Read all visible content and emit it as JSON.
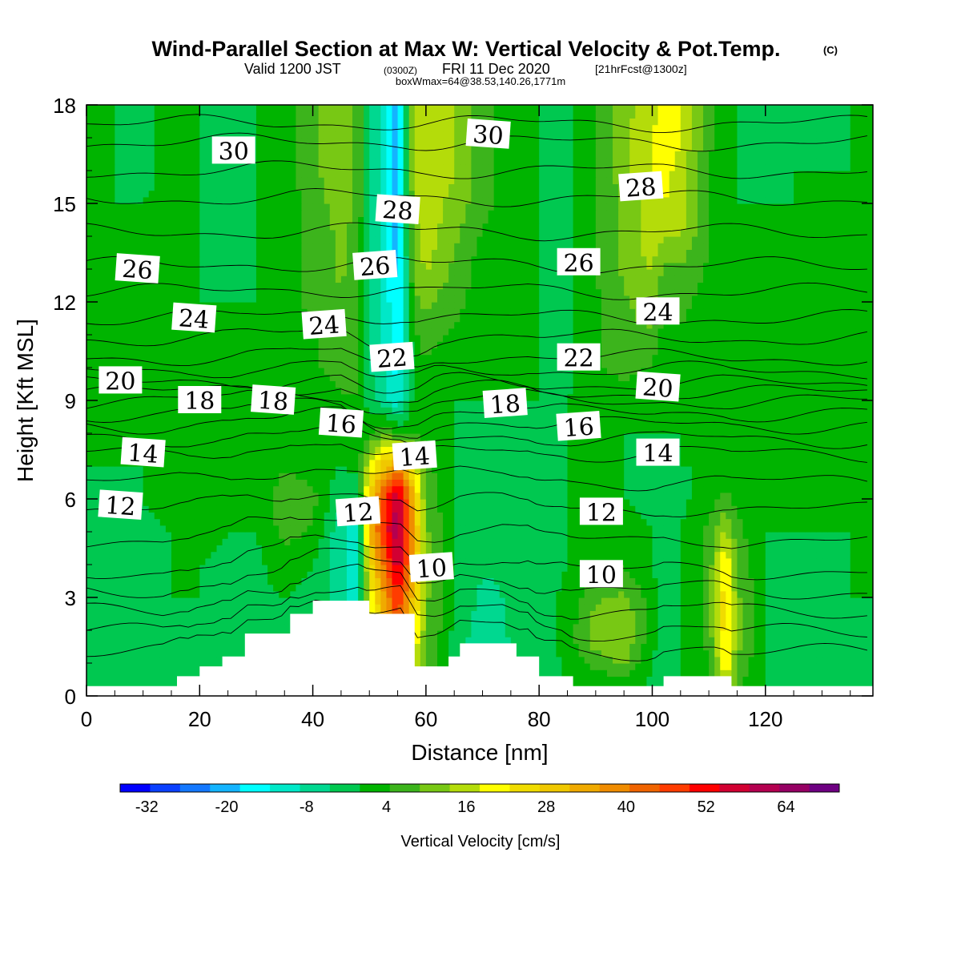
{
  "header": {
    "title": "Wind-Parallel Section at Max W: Vertical Velocity & Pot.Temp.",
    "copyright": "(C)",
    "valid_prefix": "Valid 1200 JST",
    "valid_utc": "(0300Z)",
    "valid_date": "FRI 11 Dec 2020",
    "forecast": "[21hrFcst@1300z]",
    "boxinfo": "boxWmax=64@38.53,140.26,1771m"
  },
  "chart_data": {
    "type": "heatmap",
    "xlabel": "Distance [nm]",
    "ylabel": "Height [Kft MSL]",
    "xlim": [
      0,
      139
    ],
    "ylim": [
      0,
      18
    ],
    "xticks": [
      0,
      20,
      40,
      60,
      80,
      100,
      120
    ],
    "yticks": [
      0,
      3,
      6,
      9,
      12,
      15,
      18
    ],
    "colorbar": {
      "label": "Vertical Velocity [cm/s]",
      "ticks": [
        -32,
        -20,
        -8,
        4,
        16,
        28,
        40,
        52,
        64
      ],
      "colors": [
        "#0000ff",
        "#0a40ff",
        "#1478ff",
        "#14b4ff",
        "#00ffff",
        "#00e8c8",
        "#00d890",
        "#00c850",
        "#00b400",
        "#3cb41c",
        "#78c814",
        "#b4dc0a",
        "#ffff00",
        "#f0dc00",
        "#f0c800",
        "#f0aa00",
        "#f08c00",
        "#f06400",
        "#ff3c00",
        "#ff0000",
        "#d20032",
        "#b40050",
        "#960064",
        "#6e0082"
      ]
    },
    "velocity_field_cm_s": {
      "x": [
        0,
        5,
        10,
        15,
        20,
        25,
        30,
        35,
        40,
        45,
        48,
        50,
        53,
        55,
        58,
        60,
        65,
        70,
        75,
        80,
        85,
        90,
        95,
        100,
        102,
        105,
        110,
        113,
        115,
        120,
        125,
        130,
        135,
        139
      ],
      "y": [
        0,
        0.5,
        1,
        1.5,
        2,
        3,
        4,
        5,
        6,
        7,
        8,
        9,
        10,
        11,
        12,
        13,
        14,
        15,
        16,
        17,
        18
      ],
      "values": [
        [
          -3,
          -3,
          -2,
          -1,
          0,
          -2,
          -1,
          0,
          -2,
          -4,
          -6,
          10,
          20,
          30,
          15,
          6,
          -2,
          -6,
          -4,
          -3,
          0,
          2,
          4,
          -1,
          -2,
          0,
          2,
          20,
          6,
          0,
          -1,
          -1,
          0,
          -1
        ],
        [
          -3,
          -3,
          -2,
          -1,
          0,
          -2,
          -1,
          0,
          -2,
          -4,
          -6,
          10,
          20,
          30,
          15,
          6,
          -2,
          -6,
          -4,
          -3,
          0,
          2,
          4,
          -1,
          -2,
          0,
          2,
          20,
          6,
          0,
          -1,
          -1,
          0,
          -1
        ],
        [
          -3,
          -4,
          -3,
          -1,
          0,
          -2,
          -1,
          0,
          -2,
          -5,
          -8,
          10,
          24,
          35,
          18,
          8,
          -2,
          -7,
          -4,
          -3,
          1,
          6,
          10,
          0,
          -2,
          0,
          4,
          22,
          8,
          0,
          -1,
          -1,
          0,
          -1
        ],
        [
          -4,
          -4,
          -3,
          -1,
          0,
          -2,
          -1,
          0,
          -2,
          -6,
          -10,
          12,
          28,
          40,
          20,
          9,
          -2,
          -8,
          -5,
          -3,
          2,
          10,
          12,
          1,
          -2,
          0,
          5,
          24,
          10,
          0,
          -1,
          -1,
          0,
          -1
        ],
        [
          -3,
          -4,
          -3,
          -1,
          0,
          -2,
          -1,
          0,
          -2,
          -6,
          -10,
          14,
          32,
          44,
          24,
          10,
          -1,
          -7,
          -4,
          -3,
          2,
          12,
          14,
          2,
          -2,
          0,
          6,
          26,
          10,
          0,
          -1,
          -1,
          0,
          -1
        ],
        [
          -2,
          -3,
          -2,
          0,
          0,
          -1,
          -1,
          0,
          -2,
          -7,
          -12,
          18,
          38,
          50,
          28,
          10,
          0,
          -6,
          -4,
          -2,
          1,
          8,
          10,
          2,
          -2,
          0,
          6,
          26,
          10,
          0,
          -1,
          -1,
          0,
          0
        ],
        [
          -2,
          -2,
          -1,
          0,
          0,
          -1,
          -1,
          2,
          0,
          -8,
          -14,
          24,
          44,
          58,
          32,
          10,
          0,
          -4,
          -3,
          -2,
          0,
          4,
          4,
          0,
          -2,
          0,
          6,
          24,
          8,
          0,
          -1,
          -1,
          0,
          0
        ],
        [
          -1,
          -2,
          -1,
          0,
          1,
          0,
          0,
          6,
          4,
          -8,
          -12,
          30,
          52,
          62,
          34,
          10,
          0,
          -3,
          -2,
          -2,
          0,
          2,
          2,
          0,
          -2,
          0,
          6,
          14,
          6,
          0,
          0,
          0,
          0,
          0
        ],
        [
          0,
          -1,
          0,
          1,
          1,
          0,
          0,
          8,
          6,
          -4,
          -4,
          28,
          50,
          60,
          30,
          8,
          0,
          -2,
          -2,
          -2,
          0,
          1,
          0,
          -1,
          -3,
          -1,
          2,
          6,
          3,
          0,
          0,
          0,
          0,
          0
        ],
        [
          0,
          0,
          0,
          1,
          1,
          0,
          0,
          4,
          2,
          0,
          2,
          18,
          32,
          40,
          20,
          6,
          0,
          -2,
          -2,
          -2,
          0,
          1,
          0,
          -1,
          -2,
          0,
          0,
          2,
          1,
          0,
          0,
          0,
          0,
          0
        ],
        [
          0,
          0,
          0,
          1,
          0,
          0,
          0,
          2,
          0,
          0,
          0,
          4,
          8,
          4,
          4,
          2,
          0,
          -1,
          0,
          -1,
          0,
          1,
          0,
          0,
          0,
          0,
          0,
          0,
          0,
          0,
          0,
          0,
          0,
          0
        ],
        [
          0,
          0,
          0,
          1,
          0,
          0,
          0,
          2,
          2,
          4,
          4,
          -2,
          -8,
          -12,
          2,
          2,
          0,
          0,
          0,
          0,
          0,
          2,
          2,
          0,
          0,
          0,
          0,
          0,
          0,
          0,
          0,
          0,
          0,
          0
        ],
        [
          0,
          0,
          0,
          1,
          0,
          0,
          0,
          2,
          4,
          6,
          6,
          -4,
          -10,
          -16,
          2,
          4,
          2,
          0,
          0,
          0,
          -1,
          4,
          6,
          4,
          0,
          2,
          2,
          0,
          0,
          0,
          0,
          0,
          0,
          0
        ],
        [
          0,
          0,
          0,
          1,
          0,
          0,
          0,
          2,
          4,
          8,
          6,
          -4,
          -12,
          -18,
          4,
          6,
          4,
          0,
          0,
          0,
          -1,
          4,
          8,
          8,
          2,
          4,
          2,
          0,
          0,
          0,
          0,
          0,
          0,
          0
        ],
        [
          0,
          0,
          0,
          1,
          0,
          0,
          0,
          2,
          6,
          8,
          6,
          -4,
          -12,
          -18,
          8,
          10,
          6,
          2,
          0,
          0,
          -1,
          4,
          8,
          12,
          6,
          6,
          2,
          0,
          0,
          0,
          0,
          0,
          0,
          0
        ],
        [
          0,
          0,
          0,
          1,
          0,
          -1,
          0,
          2,
          6,
          10,
          6,
          -4,
          -14,
          -20,
          10,
          14,
          8,
          2,
          0,
          0,
          -1,
          4,
          10,
          14,
          8,
          8,
          4,
          0,
          0,
          0,
          0,
          0,
          0,
          0
        ],
        [
          0,
          0,
          0,
          1,
          0,
          -1,
          0,
          2,
          6,
          10,
          6,
          -4,
          -14,
          -20,
          12,
          16,
          10,
          4,
          0,
          0,
          -1,
          4,
          10,
          16,
          14,
          14,
          4,
          0,
          0,
          0,
          0,
          0,
          0,
          0
        ],
        [
          0,
          0,
          0,
          1,
          0,
          -2,
          0,
          2,
          6,
          12,
          8,
          -4,
          -14,
          -20,
          14,
          16,
          12,
          6,
          2,
          0,
          -1,
          4,
          10,
          16,
          18,
          16,
          4,
          0,
          0,
          0,
          0,
          0,
          0,
          0
        ],
        [
          0,
          0,
          -1,
          1,
          0,
          -2,
          0,
          2,
          8,
          12,
          8,
          -4,
          -12,
          -20,
          16,
          18,
          14,
          6,
          2,
          0,
          -1,
          4,
          12,
          18,
          20,
          16,
          4,
          0,
          0,
          -1,
          0,
          0,
          0,
          0
        ],
        [
          0,
          0,
          -1,
          1,
          0,
          -2,
          0,
          2,
          8,
          12,
          8,
          -4,
          -12,
          -22,
          16,
          18,
          14,
          6,
          2,
          0,
          -1,
          4,
          12,
          18,
          22,
          18,
          6,
          0,
          0,
          -2,
          0,
          -2,
          0,
          0
        ],
        [
          0,
          0,
          -1,
          1,
          0,
          -2,
          0,
          2,
          8,
          12,
          8,
          -4,
          -12,
          -24,
          16,
          18,
          14,
          6,
          2,
          0,
          -1,
          4,
          12,
          16,
          20,
          18,
          6,
          0,
          0,
          -2,
          0,
          -2,
          0,
          0
        ]
      ]
    },
    "terrain_kft": {
      "x": [
        0,
        2,
        4,
        6,
        8,
        10,
        12,
        14,
        16,
        18,
        20,
        22,
        24,
        26,
        28,
        30,
        32,
        34,
        36,
        38,
        40,
        42,
        44,
        46,
        48,
        50,
        52,
        54,
        56,
        58,
        60,
        62,
        64,
        66,
        68,
        70,
        72,
        74,
        76,
        78,
        80,
        82,
        84,
        86,
        88,
        90,
        92,
        94,
        96,
        98,
        100,
        102,
        104,
        106,
        108,
        110,
        112,
        114,
        116,
        118,
        120,
        122,
        124,
        126,
        128,
        130,
        132,
        134,
        136,
        138,
        139
      ],
      "h": [
        0.3,
        0.3,
        0.3,
        0.3,
        0.3,
        0.3,
        0.3,
        0.3,
        0.6,
        0.6,
        0.9,
        0.9,
        1.2,
        1.2,
        1.9,
        1.9,
        1.9,
        1.9,
        2.5,
        2.5,
        2.9,
        2.9,
        2.9,
        2.9,
        2.9,
        2.5,
        2.5,
        2.5,
        2.5,
        0.9,
        0.9,
        0.9,
        1.2,
        1.6,
        1.6,
        1.6,
        1.6,
        1.6,
        1.2,
        1.2,
        0.6,
        0.6,
        0.6,
        0.3,
        0.3,
        0.3,
        0.3,
        0.3,
        0.3,
        0.3,
        0.3,
        0.6,
        0.6,
        0.6,
        0.6,
        0.6,
        0.6,
        0.3,
        0.3,
        0.3,
        0.3,
        0.3,
        0.3,
        0.3,
        0.3,
        0.3,
        0.3,
        0.3,
        0.3,
        0.3,
        0.3
      ]
    },
    "isentropes": {
      "level_labels": [
        {
          "text": "10",
          "x": 61,
          "y": 3.9
        },
        {
          "text": "10",
          "x": 91,
          "y": 3.7
        },
        {
          "text": "12",
          "x": 6,
          "y": 5.8
        },
        {
          "text": "12",
          "x": 48,
          "y": 5.6
        },
        {
          "text": "12",
          "x": 91,
          "y": 5.6
        },
        {
          "text": "14",
          "x": 10,
          "y": 7.4
        },
        {
          "text": "14",
          "x": 58,
          "y": 7.3
        },
        {
          "text": "14",
          "x": 101,
          "y": 7.4
        },
        {
          "text": "16",
          "x": 45,
          "y": 8.3
        },
        {
          "text": "16",
          "x": 87,
          "y": 8.2
        },
        {
          "text": "18",
          "x": 20,
          "y": 9
        },
        {
          "text": "18",
          "x": 33,
          "y": 9
        },
        {
          "text": "18",
          "x": 74,
          "y": 8.9
        },
        {
          "text": "20",
          "x": 6,
          "y": 9.6
        },
        {
          "text": "20",
          "x": 101,
          "y": 9.4
        },
        {
          "text": "22",
          "x": 54,
          "y": 10.3
        },
        {
          "text": "22",
          "x": 87,
          "y": 10.3
        },
        {
          "text": "24",
          "x": 19,
          "y": 11.5
        },
        {
          "text": "24",
          "x": 42,
          "y": 11.3
        },
        {
          "text": "24",
          "x": 101,
          "y": 11.7
        },
        {
          "text": "26",
          "x": 9,
          "y": 13
        },
        {
          "text": "26",
          "x": 51,
          "y": 13.1
        },
        {
          "text": "26",
          "x": 87,
          "y": 13.2
        },
        {
          "text": "28",
          "x": 55,
          "y": 14.8
        },
        {
          "text": "28",
          "x": 98,
          "y": 15.5
        },
        {
          "text": "30",
          "x": 26,
          "y": 16.6
        },
        {
          "text": "30",
          "x": 71,
          "y": 17.1
        }
      ]
    }
  }
}
